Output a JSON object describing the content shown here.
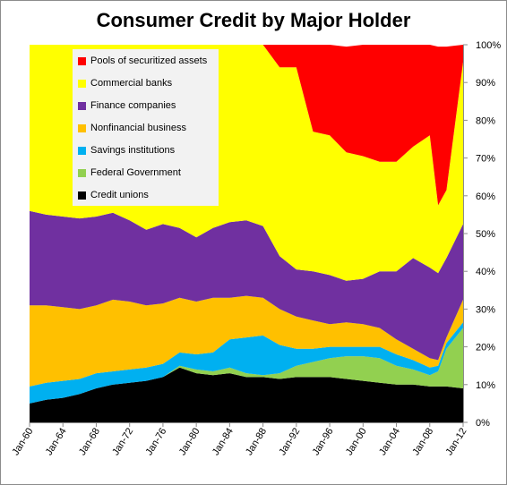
{
  "chart_data": {
    "type": "area",
    "stacked": true,
    "percent": true,
    "title": "Consumer Credit by Major Holder",
    "x": [
      1960,
      1962,
      1964,
      1966,
      1968,
      1970,
      1972,
      1974,
      1976,
      1978,
      1980,
      1982,
      1984,
      1986,
      1988,
      1990,
      1992,
      1994,
      1996,
      1998,
      2000,
      2002,
      2004,
      2006,
      2008,
      2009,
      2010,
      2012
    ],
    "x_tick_labels": [
      "Jan-60",
      "Jan-64",
      "Jan-68",
      "Jan-72",
      "Jan-76",
      "Jan-80",
      "Jan-84",
      "Jan-88",
      "Jan-92",
      "Jan-96",
      "Jan-00",
      "Jan-04",
      "Jan-08",
      "Jan-12"
    ],
    "x_tick_values": [
      1960,
      1964,
      1968,
      1972,
      1976,
      1980,
      1984,
      1988,
      1992,
      1996,
      2000,
      2004,
      2008,
      2012
    ],
    "y_tick_labels": [
      "0%",
      "10%",
      "20%",
      "30%",
      "40%",
      "50%",
      "60%",
      "70%",
      "80%",
      "90%",
      "100%"
    ],
    "ylim": [
      0,
      100
    ],
    "legend_position": "top-left",
    "series": [
      {
        "name": "Credit unions",
        "color": "#000000",
        "values": [
          5,
          6,
          6.5,
          7.5,
          9,
          10,
          10.5,
          11,
          12,
          14.5,
          13,
          12.5,
          13,
          12,
          12,
          11.5,
          12,
          12,
          12,
          11.5,
          11,
          10.5,
          10,
          10,
          9.5,
          9.5,
          9.5,
          9
        ]
      },
      {
        "name": "Federal Government",
        "color": "#92d050",
        "values": [
          0,
          0,
          0,
          0,
          0,
          0,
          0,
          0,
          0,
          0.5,
          1,
          1,
          1.5,
          1,
          0.5,
          1.5,
          3,
          4,
          5,
          6,
          6.5,
          6.5,
          5,
          4,
          3,
          4,
          10,
          16
        ]
      },
      {
        "name": "Savings institutions",
        "color": "#00b0f0",
        "values": [
          4.5,
          4.5,
          4.5,
          4,
          4,
          3.5,
          3.5,
          3.5,
          3.5,
          3.5,
          4,
          5,
          7.5,
          9.5,
          10.5,
          7.5,
          4.5,
          3.5,
          3,
          2.5,
          2.5,
          3,
          3,
          2.5,
          2,
          1.5,
          1.5,
          1.5
        ]
      },
      {
        "name": "Nonfinancial business",
        "color": "#ffc000",
        "values": [
          21.5,
          20.5,
          19.5,
          18.5,
          18,
          19,
          18,
          16.5,
          16,
          14.5,
          14,
          14.5,
          11,
          11,
          10,
          9.5,
          8.5,
          7.5,
          6,
          6.5,
          6,
          5,
          4,
          3,
          2.5,
          1.5,
          1.5,
          6
        ]
      },
      {
        "name": "Finance companies",
        "color": "#7030a0",
        "values": [
          25,
          24,
          24,
          24,
          23.5,
          23,
          21.5,
          20,
          21,
          18.5,
          17,
          18.5,
          20,
          20,
          19,
          14,
          12.5,
          13,
          13,
          11,
          12,
          15,
          18,
          24,
          24,
          23,
          21,
          20
        ]
      },
      {
        "name": "Commercial banks",
        "color": "#ffff00",
        "values": [
          44,
          45,
          45.5,
          46,
          45.5,
          44.5,
          46.5,
          49,
          47.5,
          48.5,
          51,
          48.5,
          47,
          46.5,
          48,
          50,
          53.5,
          37,
          37,
          34,
          32.5,
          29,
          29,
          29.5,
          35,
          18,
          18,
          43
        ]
      },
      {
        "name": "Pools of securitized assets",
        "color": "#ff0000",
        "values": [
          0,
          0,
          0,
          0,
          0,
          0,
          0,
          0,
          0,
          0,
          0,
          0,
          0,
          0,
          0,
          6,
          6,
          23,
          24,
          28,
          29.5,
          31,
          31,
          27,
          24,
          42,
          38,
          4.5
        ]
      }
    ]
  }
}
